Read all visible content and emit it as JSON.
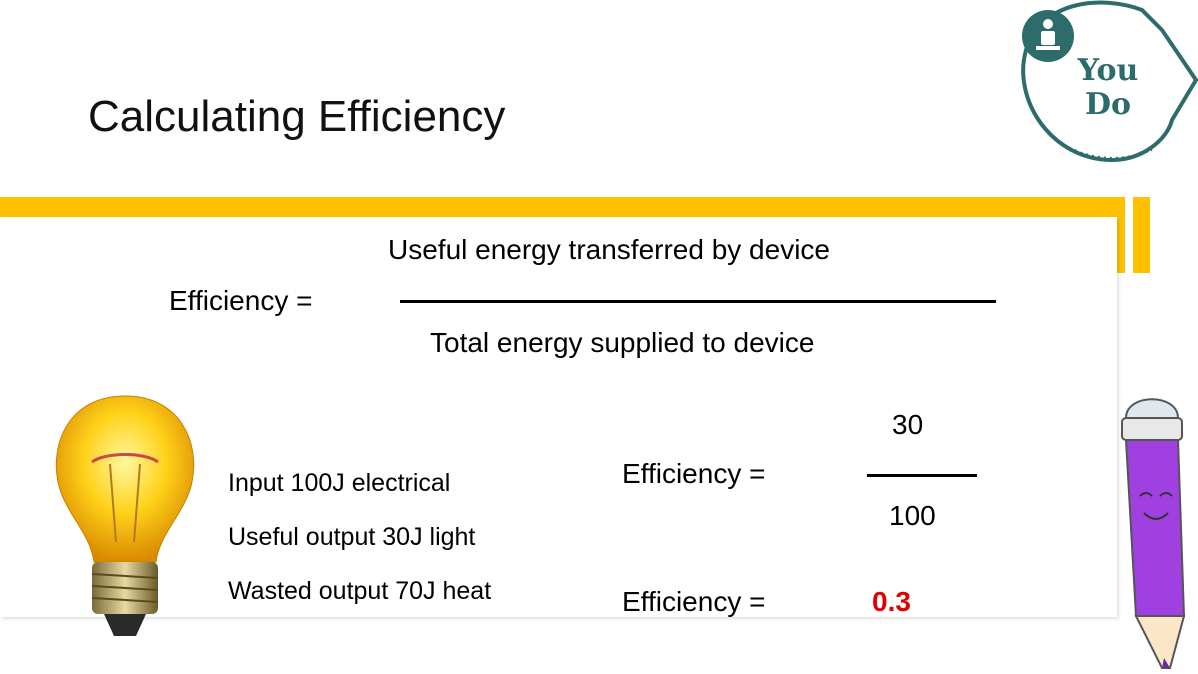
{
  "slide": {
    "title": "Calculating Efficiency",
    "badge": {
      "line1": "You",
      "line2": "Do"
    },
    "formula": {
      "lhs": "Efficiency =",
      "numerator": "Useful energy transferred by device",
      "denominator": "Total energy supplied to device"
    },
    "facts": [
      "Input 100J electrical",
      "Useful output 30J light",
      "Wasted output 70J heat"
    ],
    "calculation": {
      "lhs": "Efficiency =",
      "numerator": "30",
      "denominator": "100"
    },
    "result": {
      "lhs": "Efficiency =",
      "value": "0.3"
    },
    "colors": {
      "accent": "#ffc000",
      "badge": "#2e6b6b",
      "result": "#e00000",
      "pencil": "#a040e0"
    }
  }
}
